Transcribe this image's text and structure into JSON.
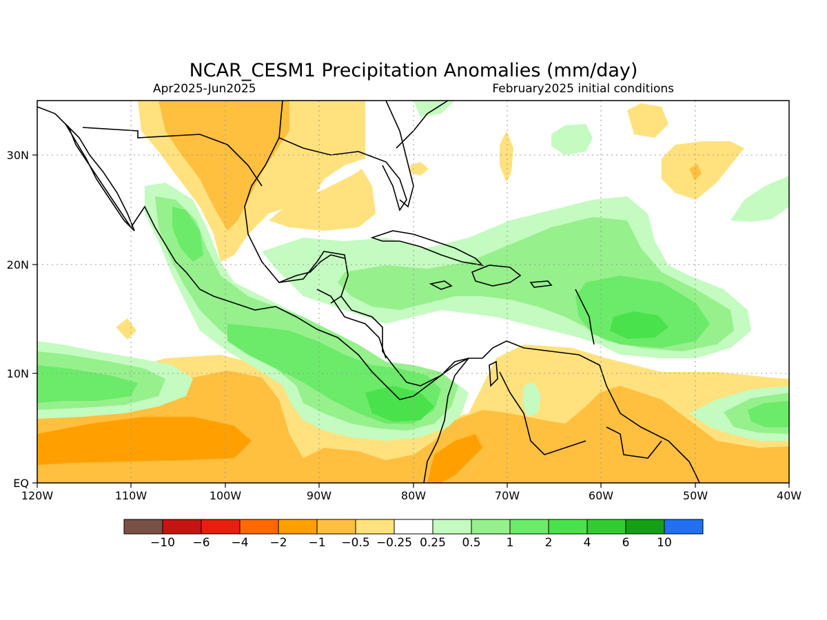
{
  "header": {
    "title": "NCAR_CESM1 Precipitation Anomalies (mm/day)",
    "period": "Apr2025-Jun2025",
    "init": "February2025 initial conditions"
  },
  "axes": {
    "lon_labels": [
      "120W",
      "110W",
      "100W",
      "90W",
      "80W",
      "70W",
      "60W",
      "50W",
      "40W"
    ],
    "lat_labels": [
      "30N",
      "20N",
      "10N",
      "EQ"
    ]
  },
  "colorbar": {
    "colors": [
      "#7a4f45",
      "#c41510",
      "#e81e0e",
      "#ff6a00",
      "#ffa000",
      "#ffbf3f",
      "#ffe27e",
      "#ffffff",
      "#c4fbc0",
      "#96f08c",
      "#6beb69",
      "#49e24a",
      "#32cc32",
      "#14a014",
      "#2070f0"
    ],
    "labels": [
      "-10",
      "-6",
      "-4",
      "-2",
      "-1",
      "-0.5",
      "-0.25",
      "0.25",
      "0.5",
      "1",
      "2",
      "4",
      "6",
      "10"
    ]
  }
}
